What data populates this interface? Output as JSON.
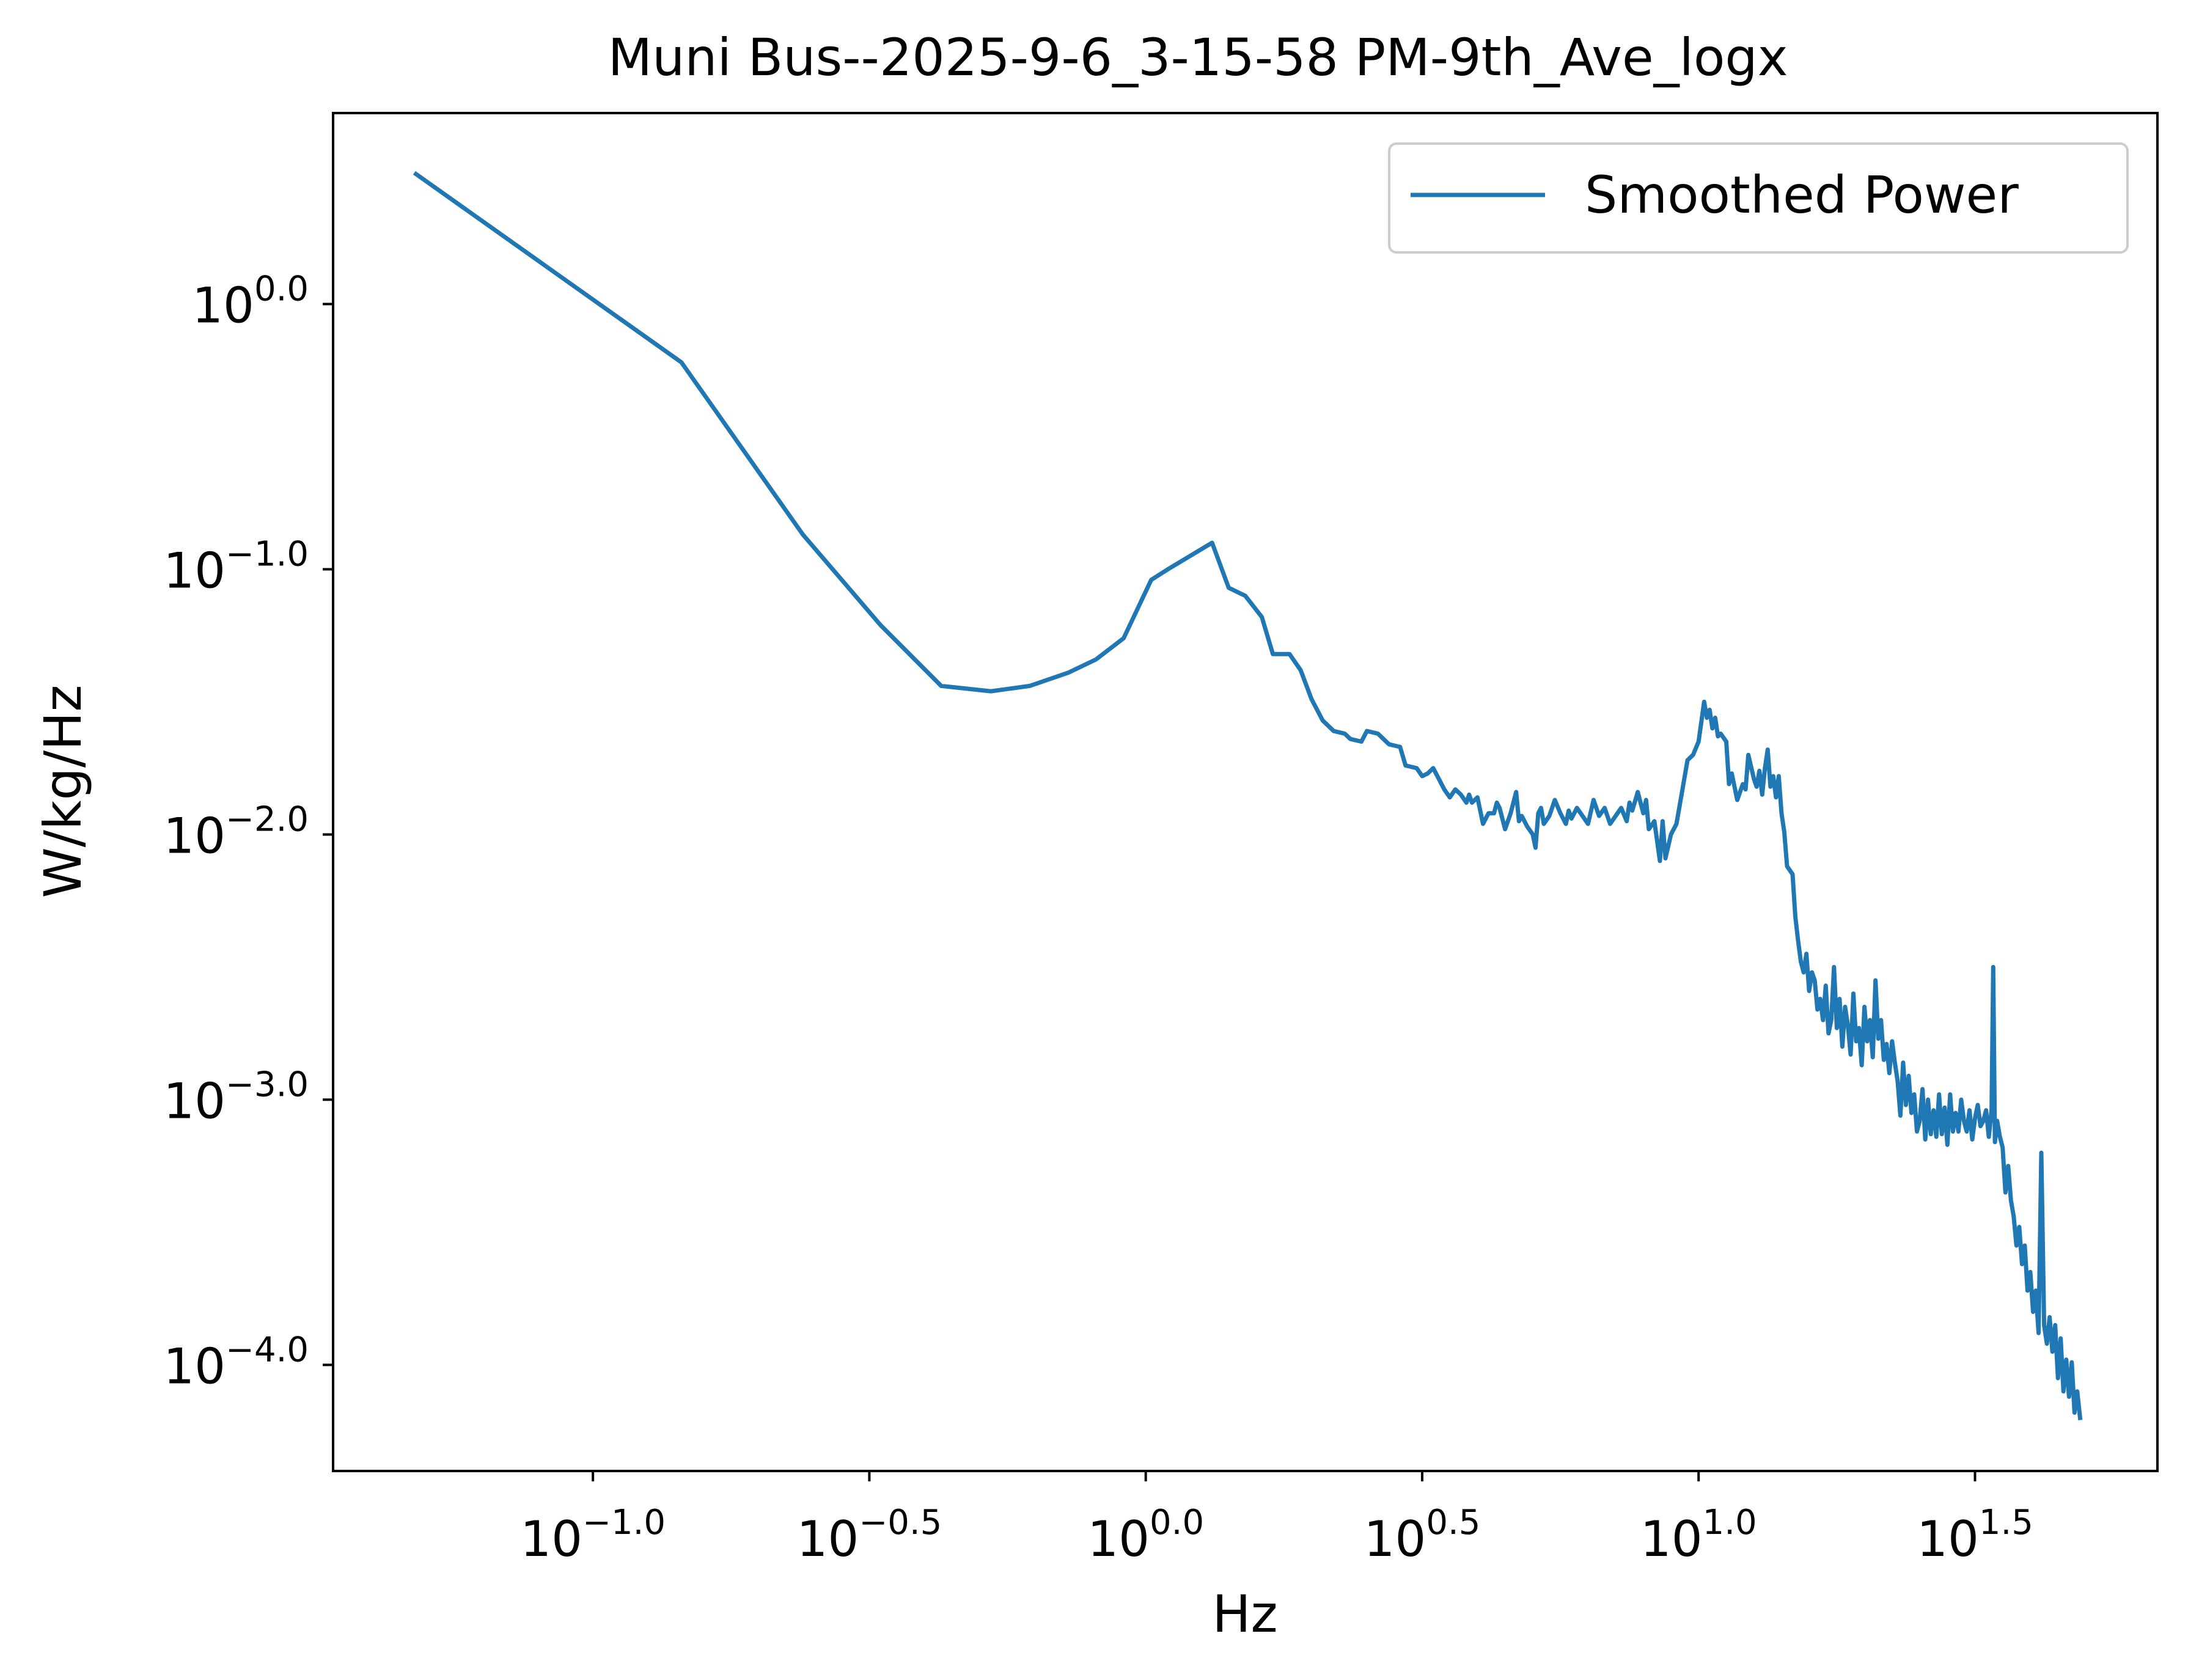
{
  "chart_data": {
    "type": "line",
    "title": "Muni Bus--2025-9-6_3-15-58 PM-9th_Ave_logx",
    "xlabel": "Hz",
    "ylabel": "W/kg/Hz",
    "xscale": "log",
    "yscale": "log",
    "xlim_log10": [
      -1.47,
      1.83
    ],
    "ylim_log10": [
      -4.4,
      0.72
    ],
    "grid": false,
    "legend_placement": "upper right",
    "xticks": [
      {
        "log10": -1.0,
        "base": "10",
        "exp": "−1.0"
      },
      {
        "log10": -0.5,
        "base": "10",
        "exp": "−0.5"
      },
      {
        "log10": 0.0,
        "base": "10",
        "exp": "0.0"
      },
      {
        "log10": 0.5,
        "base": "10",
        "exp": "0.5"
      },
      {
        "log10": 1.0,
        "base": "10",
        "exp": "1.0"
      },
      {
        "log10": 1.5,
        "base": "10",
        "exp": "1.5"
      }
    ],
    "yticks": [
      {
        "log10": 0.0,
        "base": "10",
        "exp": "0.0"
      },
      {
        "log10": -1.0,
        "base": "10",
        "exp": "−1.0"
      },
      {
        "log10": -2.0,
        "base": "10",
        "exp": "−2.0"
      },
      {
        "log10": -3.0,
        "base": "10",
        "exp": "−3.0"
      },
      {
        "log10": -4.0,
        "base": "10",
        "exp": "−4.0"
      }
    ],
    "series": [
      {
        "name": "Smoothed Power",
        "color": "#1f77b4",
        "points_log10": [
          [
            -1.32,
            0.49
          ],
          [
            -0.84,
            -0.22
          ],
          [
            -0.62,
            -0.87
          ],
          [
            -0.48,
            -1.21
          ],
          [
            -0.37,
            -1.44
          ],
          [
            -0.28,
            -1.46
          ],
          [
            -0.21,
            -1.44
          ],
          [
            -0.14,
            -1.39
          ],
          [
            -0.09,
            -1.34
          ],
          [
            -0.04,
            -1.26
          ],
          [
            0.01,
            -1.04
          ],
          [
            0.04,
            -1.0
          ],
          [
            0.12,
            -0.9
          ],
          [
            0.15,
            -1.07
          ],
          [
            0.18,
            -1.1
          ],
          [
            0.21,
            -1.18
          ],
          [
            0.23,
            -1.32
          ],
          [
            0.26,
            -1.32
          ],
          [
            0.28,
            -1.38
          ],
          [
            0.3,
            -1.49
          ],
          [
            0.32,
            -1.57
          ],
          [
            0.34,
            -1.61
          ],
          [
            0.36,
            -1.62
          ],
          [
            0.37,
            -1.64
          ],
          [
            0.39,
            -1.65
          ],
          [
            0.4,
            -1.61
          ],
          [
            0.42,
            -1.62
          ],
          [
            0.43,
            -1.64
          ],
          [
            0.44,
            -1.66
          ],
          [
            0.46,
            -1.67
          ],
          [
            0.47,
            -1.74
          ],
          [
            0.49,
            -1.75
          ],
          [
            0.5,
            -1.78
          ],
          [
            0.51,
            -1.77
          ],
          [
            0.52,
            -1.75
          ],
          [
            0.53,
            -1.79
          ],
          [
            0.54,
            -1.83
          ],
          [
            0.55,
            -1.86
          ],
          [
            0.56,
            -1.83
          ],
          [
            0.57,
            -1.85
          ],
          [
            0.58,
            -1.88
          ],
          [
            0.585,
            -1.85
          ],
          [
            0.59,
            -1.88
          ],
          [
            0.6,
            -1.86
          ],
          [
            0.61,
            -1.96
          ],
          [
            0.62,
            -1.92
          ],
          [
            0.63,
            -1.92
          ],
          [
            0.635,
            -1.88
          ],
          [
            0.64,
            -1.9
          ],
          [
            0.65,
            -1.98
          ],
          [
            0.66,
            -1.92
          ],
          [
            0.67,
            -1.84
          ],
          [
            0.675,
            -1.95
          ],
          [
            0.68,
            -1.93
          ],
          [
            0.69,
            -1.97
          ],
          [
            0.7,
            -2.0
          ],
          [
            0.705,
            -2.05
          ],
          [
            0.71,
            -1.92
          ],
          [
            0.715,
            -1.9
          ],
          [
            0.72,
            -1.96
          ],
          [
            0.73,
            -1.93
          ],
          [
            0.74,
            -1.87
          ],
          [
            0.75,
            -1.92
          ],
          [
            0.76,
            -1.96
          ],
          [
            0.765,
            -1.91
          ],
          [
            0.77,
            -1.94
          ],
          [
            0.78,
            -1.9
          ],
          [
            0.79,
            -1.93
          ],
          [
            0.8,
            -1.96
          ],
          [
            0.81,
            -1.87
          ],
          [
            0.82,
            -1.93
          ],
          [
            0.83,
            -1.9
          ],
          [
            0.84,
            -1.96
          ],
          [
            0.85,
            -1.93
          ],
          [
            0.86,
            -1.9
          ],
          [
            0.87,
            -1.95
          ],
          [
            0.875,
            -1.88
          ],
          [
            0.88,
            -1.91
          ],
          [
            0.89,
            -1.84
          ],
          [
            0.9,
            -1.92
          ],
          [
            0.905,
            -1.87
          ],
          [
            0.91,
            -1.98
          ],
          [
            0.92,
            -1.95
          ],
          [
            0.93,
            -2.1
          ],
          [
            0.935,
            -1.95
          ],
          [
            0.94,
            -2.09
          ],
          [
            0.95,
            -2.0
          ],
          [
            0.96,
            -1.96
          ],
          [
            0.97,
            -1.84
          ],
          [
            0.98,
            -1.72
          ],
          [
            0.99,
            -1.7
          ],
          [
            1.0,
            -1.65
          ],
          [
            1.01,
            -1.5
          ],
          [
            1.015,
            -1.56
          ],
          [
            1.02,
            -1.53
          ],
          [
            1.025,
            -1.6
          ],
          [
            1.03,
            -1.56
          ],
          [
            1.035,
            -1.63
          ],
          [
            1.04,
            -1.62
          ],
          [
            1.05,
            -1.65
          ],
          [
            1.055,
            -1.81
          ],
          [
            1.06,
            -1.77
          ],
          [
            1.065,
            -1.82
          ],
          [
            1.07,
            -1.87
          ],
          [
            1.08,
            -1.81
          ],
          [
            1.085,
            -1.83
          ],
          [
            1.09,
            -1.7
          ],
          [
            1.1,
            -1.79
          ],
          [
            1.105,
            -1.82
          ],
          [
            1.11,
            -1.76
          ],
          [
            1.115,
            -1.85
          ],
          [
            1.12,
            -1.75
          ],
          [
            1.125,
            -1.68
          ],
          [
            1.13,
            -1.82
          ],
          [
            1.135,
            -1.78
          ],
          [
            1.14,
            -1.86
          ],
          [
            1.145,
            -1.78
          ],
          [
            1.15,
            -1.92
          ],
          [
            1.155,
            -1.99
          ],
          [
            1.16,
            -2.12
          ],
          [
            1.17,
            -2.15
          ],
          [
            1.175,
            -2.31
          ],
          [
            1.18,
            -2.4
          ],
          [
            1.185,
            -2.48
          ],
          [
            1.19,
            -2.52
          ],
          [
            1.195,
            -2.45
          ],
          [
            1.2,
            -2.59
          ],
          [
            1.205,
            -2.52
          ],
          [
            1.21,
            -2.55
          ],
          [
            1.215,
            -2.66
          ],
          [
            1.22,
            -2.62
          ],
          [
            1.225,
            -2.7
          ],
          [
            1.23,
            -2.57
          ],
          [
            1.235,
            -2.75
          ],
          [
            1.24,
            -2.7
          ],
          [
            1.245,
            -2.5
          ],
          [
            1.25,
            -2.73
          ],
          [
            1.255,
            -2.62
          ],
          [
            1.26,
            -2.8
          ],
          [
            1.265,
            -2.65
          ],
          [
            1.27,
            -2.72
          ],
          [
            1.275,
            -2.83
          ],
          [
            1.28,
            -2.6
          ],
          [
            1.285,
            -2.78
          ],
          [
            1.29,
            -2.73
          ],
          [
            1.295,
            -2.87
          ],
          [
            1.3,
            -2.65
          ],
          [
            1.305,
            -2.78
          ],
          [
            1.31,
            -2.7
          ],
          [
            1.315,
            -2.84
          ],
          [
            1.32,
            -2.55
          ],
          [
            1.325,
            -2.77
          ],
          [
            1.33,
            -2.7
          ],
          [
            1.335,
            -2.85
          ],
          [
            1.34,
            -2.79
          ],
          [
            1.345,
            -2.9
          ],
          [
            1.35,
            -2.78
          ],
          [
            1.355,
            -2.86
          ],
          [
            1.36,
            -2.93
          ],
          [
            1.365,
            -3.06
          ],
          [
            1.37,
            -2.86
          ],
          [
            1.375,
            -3.02
          ],
          [
            1.38,
            -2.91
          ],
          [
            1.385,
            -3.05
          ],
          [
            1.39,
            -2.98
          ],
          [
            1.395,
            -3.12
          ],
          [
            1.4,
            -3.08
          ],
          [
            1.405,
            -2.96
          ],
          [
            1.41,
            -3.15
          ],
          [
            1.415,
            -3.0
          ],
          [
            1.42,
            -3.13
          ],
          [
            1.425,
            -3.04
          ],
          [
            1.43,
            -3.14
          ],
          [
            1.435,
            -2.98
          ],
          [
            1.44,
            -3.13
          ],
          [
            1.445,
            -3.03
          ],
          [
            1.45,
            -3.17
          ],
          [
            1.455,
            -2.98
          ],
          [
            1.46,
            -3.12
          ],
          [
            1.465,
            -3.05
          ],
          [
            1.47,
            -3.12
          ],
          [
            1.475,
            -3.0
          ],
          [
            1.48,
            -3.08
          ],
          [
            1.485,
            -3.12
          ],
          [
            1.49,
            -3.04
          ],
          [
            1.495,
            -3.15
          ],
          [
            1.5,
            -3.07
          ],
          [
            1.505,
            -3.02
          ],
          [
            1.51,
            -3.1
          ],
          [
            1.515,
            -3.08
          ],
          [
            1.52,
            -3.04
          ],
          [
            1.525,
            -3.14
          ],
          [
            1.53,
            -3.04
          ],
          [
            1.533,
            -2.5
          ],
          [
            1.536,
            -3.16
          ],
          [
            1.54,
            -3.08
          ],
          [
            1.545,
            -3.14
          ],
          [
            1.55,
            -3.18
          ],
          [
            1.555,
            -3.35
          ],
          [
            1.56,
            -3.25
          ],
          [
            1.565,
            -3.38
          ],
          [
            1.57,
            -3.44
          ],
          [
            1.575,
            -3.55
          ],
          [
            1.58,
            -3.48
          ],
          [
            1.585,
            -3.62
          ],
          [
            1.59,
            -3.55
          ],
          [
            1.595,
            -3.72
          ],
          [
            1.6,
            -3.65
          ],
          [
            1.605,
            -3.8
          ],
          [
            1.61,
            -3.72
          ],
          [
            1.615,
            -3.88
          ],
          [
            1.62,
            -3.2
          ],
          [
            1.625,
            -3.85
          ],
          [
            1.63,
            -3.92
          ],
          [
            1.635,
            -3.82
          ],
          [
            1.64,
            -3.95
          ],
          [
            1.645,
            -3.85
          ],
          [
            1.65,
            -4.05
          ],
          [
            1.655,
            -3.9
          ],
          [
            1.66,
            -4.1
          ],
          [
            1.665,
            -3.98
          ],
          [
            1.67,
            -4.12
          ],
          [
            1.675,
            -3.99
          ],
          [
            1.68,
            -4.18
          ],
          [
            1.685,
            -4.1
          ],
          [
            1.69,
            -4.2
          ]
        ]
      }
    ]
  }
}
